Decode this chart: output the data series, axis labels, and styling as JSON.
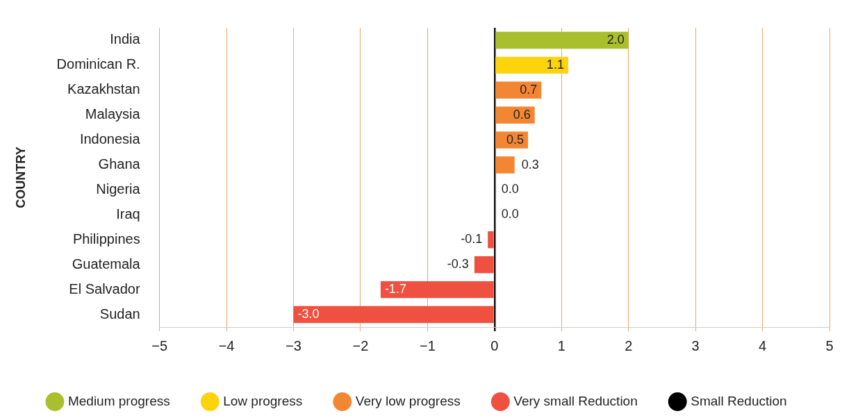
{
  "chart_data": {
    "type": "bar",
    "orientation": "horizontal",
    "stacked": true,
    "ylabel": "COUNTRY",
    "categories": [
      "India",
      "Dominican R.",
      "Kazakhstan",
      "Malaysia",
      "Indonesia",
      "Ghana",
      "Nigeria",
      "Iraq",
      "Philippines",
      "Guatemala",
      "El Salvador",
      "Sudan"
    ],
    "series": [
      {
        "name": "Medium progress",
        "color": "#a9bf2d",
        "values": [
          2.0,
          null,
          null,
          null,
          null,
          null,
          null,
          null,
          null,
          null,
          null,
          null
        ],
        "value_labels": [
          "2.0",
          null,
          null,
          null,
          null,
          null,
          null,
          null,
          null,
          null,
          null,
          null
        ]
      },
      {
        "name": "Low progress",
        "color": "#fdd30e",
        "values": [
          null,
          1.1,
          null,
          null,
          null,
          null,
          null,
          null,
          null,
          null,
          null,
          null
        ],
        "value_labels": [
          null,
          "1.1",
          null,
          null,
          null,
          null,
          null,
          null,
          null,
          null,
          null,
          null
        ]
      },
      {
        "name": "Very low progress",
        "color": "#f38633",
        "values": [
          null,
          null,
          0.7,
          0.6,
          0.5,
          0.3,
          0.0,
          0.0,
          null,
          null,
          null,
          null
        ],
        "value_labels": [
          null,
          null,
          "0.7",
          "0.6",
          "0.5",
          "0.3",
          "0.0",
          "0.0",
          null,
          null,
          null,
          null
        ]
      },
      {
        "name": "Very small Reduction",
        "color": "#ef5040",
        "values": [
          null,
          null,
          null,
          null,
          null,
          null,
          null,
          null,
          -0.1,
          -0.3,
          -1.7,
          -3.0
        ],
        "value_labels": [
          null,
          null,
          null,
          null,
          null,
          null,
          null,
          null,
          "-0.1",
          "-0.3",
          "-1.7",
          "-3.0"
        ]
      },
      {
        "name": "Small Reduction",
        "color": "#000000",
        "values": [
          null,
          null,
          null,
          null,
          null,
          null,
          null,
          null,
          null,
          null,
          null,
          null
        ]
      }
    ],
    "xlim": [
      -5,
      5
    ],
    "xticks": [
      -5,
      -4,
      -3,
      -2,
      -1,
      0,
      1,
      2,
      3,
      4,
      5
    ],
    "grid": "x",
    "legend": "bottom"
  }
}
